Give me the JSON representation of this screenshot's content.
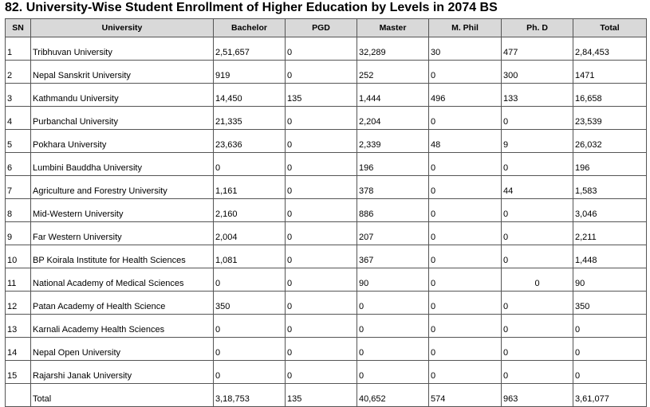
{
  "title": "82. University-Wise Student Enrollment of Higher Education by Levels in 2074 BS",
  "columns": [
    "SN",
    "University",
    "Bachelor",
    "PGD",
    "Master",
    "M. Phil",
    "Ph. D",
    "Total"
  ],
  "rows": [
    [
      "1",
      "Tribhuvan University",
      "2,51,657",
      "0",
      "32,289",
      "30",
      "477",
      "2,84,453"
    ],
    [
      "2",
      "Nepal Sanskrit University",
      "919",
      "0",
      "252",
      "0",
      "300",
      "1471"
    ],
    [
      "3",
      "Kathmandu University",
      "14,450",
      "135",
      "1,444",
      "496",
      "133",
      "16,658"
    ],
    [
      "4",
      "Purbanchal University",
      "21,335",
      "0",
      "2,204",
      "0",
      "0",
      "23,539"
    ],
    [
      "5",
      "Pokhara University",
      "23,636",
      "0",
      "2,339",
      "48",
      "9",
      "26,032"
    ],
    [
      "6",
      "Lumbini Bauddha University",
      "0",
      "0",
      "196",
      "0",
      "0",
      "196"
    ],
    [
      "7",
      "Agriculture and Forestry University",
      "1,161",
      "0",
      "378",
      "0",
      "44",
      "1,583"
    ],
    [
      "8",
      "Mid-Western University",
      "2,160",
      "0",
      "886",
      "0",
      "0",
      "3,046"
    ],
    [
      "9",
      "Far Western University",
      "2,004",
      "0",
      "207",
      "0",
      "0",
      "2,211"
    ],
    [
      "10",
      "BP Koirala Institute for Health Sciences",
      "1,081",
      "0",
      "367",
      "0",
      "0",
      "1,448"
    ],
    [
      "11",
      "National Academy of Medical Sciences",
      "0",
      "0",
      "90",
      "0",
      "0",
      "90"
    ],
    [
      "12",
      "Patan Academy of Health Science",
      "350",
      "0",
      "0",
      "0",
      "0",
      "350"
    ],
    [
      "13",
      "Karnali Academy Health Sciences",
      "0",
      "0",
      "0",
      "0",
      "0",
      "0"
    ],
    [
      "14",
      "Nepal Open University",
      "0",
      "0",
      "0",
      "0",
      "0",
      "0"
    ],
    [
      "15",
      "Rajarshi Janak University",
      "0",
      "0",
      "0",
      "0",
      "0",
      "0"
    ],
    [
      "",
      "Total",
      "3,18,753",
      "135",
      "40,652",
      "574",
      "963",
      "3,61,077"
    ]
  ]
}
